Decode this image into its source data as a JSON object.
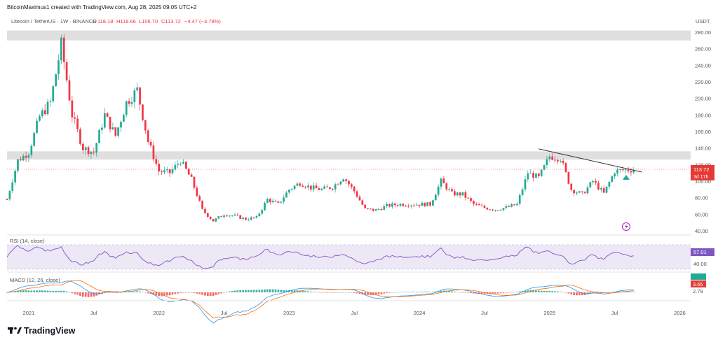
{
  "header": {
    "credit": "BitcoinMaximus1 created with TradingView.com, Aug 28, 2025 09:05 UTC+2",
    "symbol": "Litecoin / TetherUS · 1W · BINANCE",
    "ohlc_open_prefix": "O",
    "ohlc_open": "118.18",
    "ohlc_high": "H118.66",
    "ohlc_low": "L106.70",
    "ohlc_close": "C113.72",
    "ohlc_change": "−4.47 (−3.78%)"
  },
  "price_axis": {
    "currency": "USDT",
    "ticks": [
      "280.00",
      "260.00",
      "240.00",
      "220.00",
      "200.00",
      "180.00",
      "160.00",
      "140.00",
      "120.00",
      "100.00",
      "80.00",
      "60.00",
      "40.00"
    ],
    "last_price": "113.72",
    "countdown": "3d 17h"
  },
  "rsi": {
    "label": "RSI (14, close)",
    "value": "57.01",
    "tick": "40.00"
  },
  "macd": {
    "label": "MACD (12, 26, close)",
    "values": [
      "3.65",
      "2.79"
    ]
  },
  "time_axis": {
    "ticks": [
      "2021",
      "Jul",
      "2022",
      "Jul",
      "2023",
      "Jul",
      "2024",
      "Jul",
      "2025",
      "Jul",
      "2026"
    ]
  },
  "brand": {
    "name": "TradingView"
  },
  "colors": {
    "up": "#22ab94",
    "down": "#f23645",
    "rsi": "#7e57c2",
    "rsi_band": "#ede7f6",
    "zone": "#d9d9d9"
  },
  "chart_data": {
    "type": "candlestick",
    "timeframe": "1W",
    "y_unit": "USDT",
    "ylim": [
      40,
      295
    ],
    "x_start": "2020-11",
    "x_end": "2026-02",
    "resistance_zones": [
      [
        270,
        282
      ],
      [
        126,
        136
      ]
    ],
    "trendline": [
      [
        "2024-12",
        139
      ],
      [
        "2025-09",
        111
      ]
    ],
    "monthly_close_approx": [
      {
        "m": "2020-11",
        "c": 78
      },
      {
        "m": "2020-12",
        "c": 125
      },
      {
        "m": "2021-01",
        "c": 135
      },
      {
        "m": "2021-02",
        "c": 178
      },
      {
        "m": "2021-03",
        "c": 195
      },
      {
        "m": "2021-04",
        "c": 265
      },
      {
        "m": "2021-05",
        "c": 180
      },
      {
        "m": "2021-06",
        "c": 140
      },
      {
        "m": "2021-07",
        "c": 135
      },
      {
        "m": "2021-08",
        "c": 180
      },
      {
        "m": "2021-09",
        "c": 155
      },
      {
        "m": "2021-10",
        "c": 195
      },
      {
        "m": "2021-11",
        "c": 210
      },
      {
        "m": "2021-12",
        "c": 148
      },
      {
        "m": "2022-01",
        "c": 112
      },
      {
        "m": "2022-02",
        "c": 110
      },
      {
        "m": "2022-03",
        "c": 125
      },
      {
        "m": "2022-04",
        "c": 102
      },
      {
        "m": "2022-05",
        "c": 65
      },
      {
        "m": "2022-06",
        "c": 52
      },
      {
        "m": "2022-07",
        "c": 60
      },
      {
        "m": "2022-08",
        "c": 58
      },
      {
        "m": "2022-09",
        "c": 54
      },
      {
        "m": "2022-10",
        "c": 56
      },
      {
        "m": "2022-11",
        "c": 78
      },
      {
        "m": "2022-12",
        "c": 72
      },
      {
        "m": "2023-01",
        "c": 90
      },
      {
        "m": "2023-02",
        "c": 98
      },
      {
        "m": "2023-03",
        "c": 92
      },
      {
        "m": "2023-04",
        "c": 90
      },
      {
        "m": "2023-05",
        "c": 93
      },
      {
        "m": "2023-06",
        "c": 105
      },
      {
        "m": "2023-07",
        "c": 88
      },
      {
        "m": "2023-08",
        "c": 66
      },
      {
        "m": "2023-09",
        "c": 65
      },
      {
        "m": "2023-10",
        "c": 70
      },
      {
        "m": "2023-11",
        "c": 72
      },
      {
        "m": "2023-12",
        "c": 72
      },
      {
        "m": "2024-01",
        "c": 72
      },
      {
        "m": "2024-02",
        "c": 72
      },
      {
        "m": "2024-03",
        "c": 100
      },
      {
        "m": "2024-04",
        "c": 85
      },
      {
        "m": "2024-05",
        "c": 84
      },
      {
        "m": "2024-06",
        "c": 72
      },
      {
        "m": "2024-07",
        "c": 68
      },
      {
        "m": "2024-08",
        "c": 66
      },
      {
        "m": "2024-09",
        "c": 68
      },
      {
        "m": "2024-10",
        "c": 72
      },
      {
        "m": "2024-11",
        "c": 110
      },
      {
        "m": "2024-12",
        "c": 104
      },
      {
        "m": "2025-01",
        "c": 130
      },
      {
        "m": "2025-02",
        "c": 128
      },
      {
        "m": "2025-03",
        "c": 90
      },
      {
        "m": "2025-04",
        "c": 84
      },
      {
        "m": "2025-05",
        "c": 100
      },
      {
        "m": "2025-06",
        "c": 85
      },
      {
        "m": "2025-07",
        "c": 112
      },
      {
        "m": "2025-08",
        "c": 113.72
      }
    ]
  }
}
